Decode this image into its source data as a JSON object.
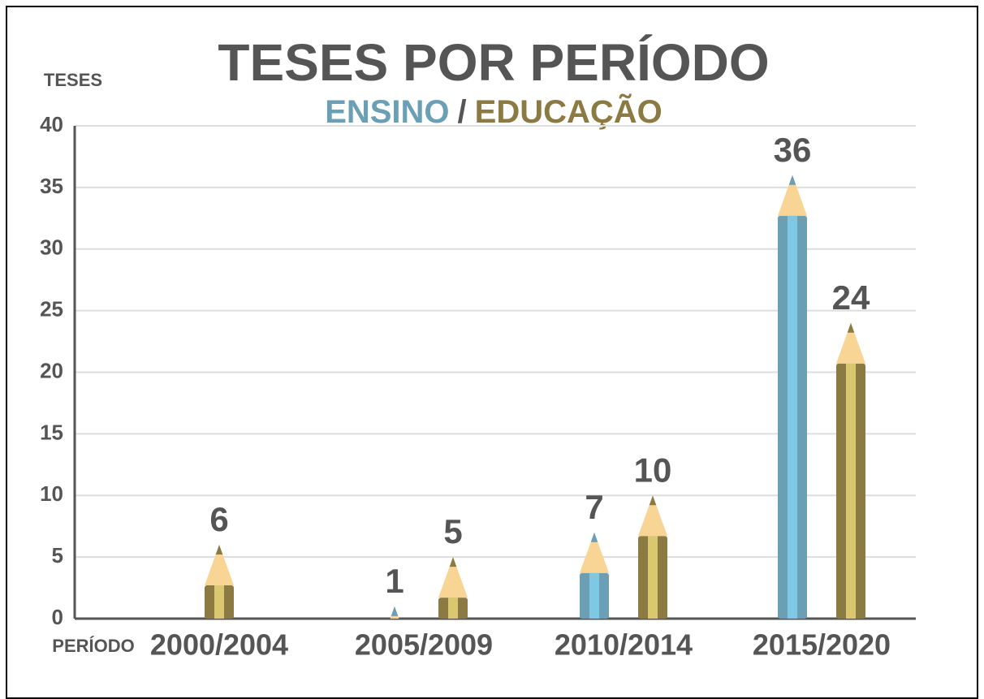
{
  "chart_data": {
    "type": "bar",
    "title": "TESES POR PERÍODO",
    "legend_separator": "/",
    "y_label": "TESES",
    "x_label": "PERÍODO",
    "categories": [
      "2000/2004",
      "2005/2009",
      "2010/2014",
      "2015/2020"
    ],
    "series": [
      {
        "name": "ENSINO",
        "color": "#6a9fb5",
        "values": [
          null,
          1,
          7,
          36
        ]
      },
      {
        "name": "EDUCAÇÃO",
        "color": "#8b7a42",
        "values": [
          6,
          5,
          10,
          24
        ]
      }
    ],
    "ylim": [
      0,
      40
    ],
    "yticks": [
      0,
      5,
      10,
      15,
      20,
      25,
      30,
      35,
      40
    ],
    "grid": true
  }
}
